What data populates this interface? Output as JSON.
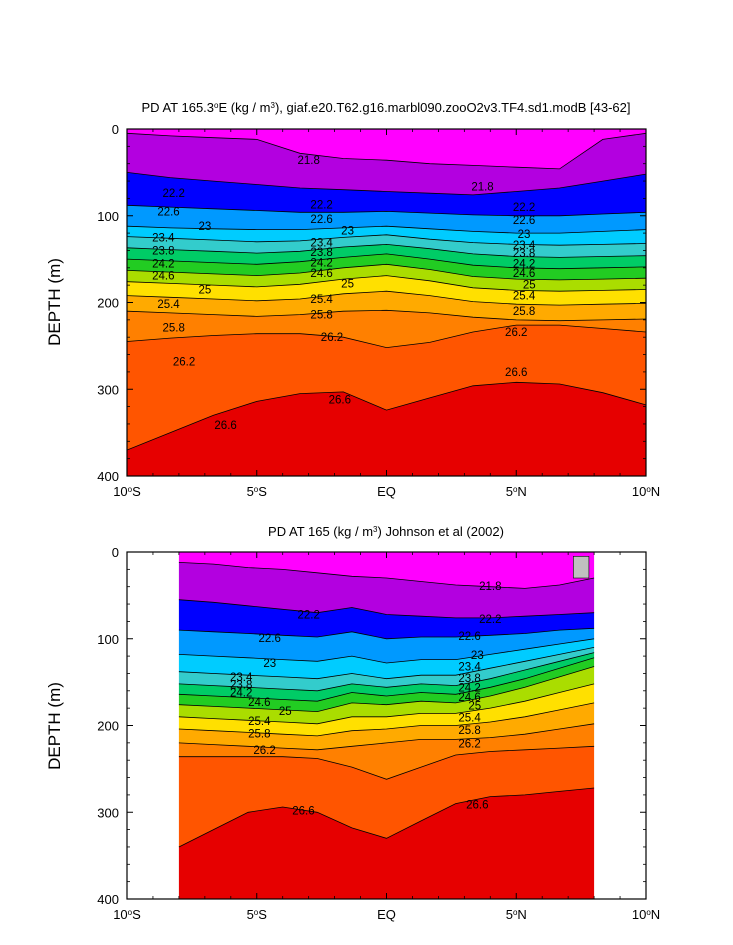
{
  "chart_data": [
    {
      "type": "contour",
      "title": "PD AT 165.3°E (kg / m³), giaf.e20.T62.g16.marbl090.zooO2v3.TF4.sd1.modB [43-62]",
      "title_parts": {
        "pre": "PD AT 165.3",
        "deg": "o",
        "mid": "E (kg / m",
        "sup": "3",
        "post": "), giaf.e20.T62.g16.marbl090.zooO2v3.TF4.sd1.modB [43-62]"
      },
      "ylabel": "DEPTH (m)",
      "xlabel": "",
      "xlim": [
        -10,
        10
      ],
      "ylim": [
        0,
        400
      ],
      "y_inverted": true,
      "data_xrange": [
        -10,
        10
      ],
      "x_ticks": [
        {
          "value": -10,
          "num": "10",
          "deg": "o",
          "hem": "S"
        },
        {
          "value": -5,
          "num": "5",
          "deg": "o",
          "hem": "S"
        },
        {
          "value": 0,
          "num": "EQ",
          "deg": "",
          "hem": ""
        },
        {
          "value": 5,
          "num": "5",
          "deg": "o",
          "hem": "N"
        },
        {
          "value": 10,
          "num": "10",
          "deg": "o",
          "hem": "N"
        }
      ],
      "y_ticks": [
        {
          "value": 0,
          "label": "0"
        },
        {
          "value": 100,
          "label": "100"
        },
        {
          "value": 200,
          "label": "200"
        },
        {
          "value": 300,
          "label": "300"
        },
        {
          "value": 400,
          "label": "400"
        }
      ],
      "isopycnal_depths": [
        {
          "sigma": 21.8,
          "depth": [
            5,
            8,
            10,
            12,
            28,
            34,
            36,
            40,
            42,
            44,
            46,
            12,
            5
          ]
        },
        {
          "sigma": 22.2,
          "depth": [
            50,
            56,
            60,
            64,
            68,
            70,
            72,
            74,
            76,
            72,
            68,
            60,
            52
          ]
        },
        {
          "sigma": 22.6,
          "depth": [
            88,
            90,
            92,
            94,
            96,
            96,
            95,
            97,
            99,
            100,
            100,
            98,
            96
          ]
        },
        {
          "sigma": 23.0,
          "depth": [
            112,
            114,
            115,
            116,
            116,
            114,
            112,
            115,
            118,
            120,
            120,
            118,
            116
          ]
        },
        {
          "sigma": 23.4,
          "depth": [
            124,
            126,
            128,
            130,
            129,
            125,
            122,
            127,
            131,
            133,
            134,
            133,
            132
          ]
        },
        {
          "sigma": 23.8,
          "depth": [
            137,
            139,
            141,
            143,
            141,
            136,
            133,
            138,
            144,
            147,
            148,
            147,
            146
          ]
        },
        {
          "sigma": 24.2,
          "depth": [
            150,
            152,
            154,
            156,
            153,
            148,
            144,
            150,
            157,
            160,
            161,
            160,
            159
          ]
        },
        {
          "sigma": 24.6,
          "depth": [
            163,
            165,
            167,
            169,
            166,
            160,
            156,
            162,
            170,
            173,
            174,
            173,
            172
          ]
        },
        {
          "sigma": 25.0,
          "depth": [
            176,
            178,
            180,
            182,
            179,
            173,
            169,
            175,
            183,
            186,
            187,
            186,
            185
          ]
        },
        {
          "sigma": 25.4,
          "depth": [
            192,
            194,
            196,
            198,
            196,
            190,
            187,
            192,
            199,
            202,
            203,
            202,
            201
          ]
        },
        {
          "sigma": 25.8,
          "depth": [
            210,
            212,
            214,
            216,
            214,
            210,
            209,
            212,
            217,
            220,
            221,
            220,
            219
          ]
        },
        {
          "sigma": 26.2,
          "depth": [
            245,
            241,
            238,
            236,
            236,
            240,
            252,
            246,
            234,
            226,
            226,
            230,
            234
          ]
        },
        {
          "sigma": 26.6,
          "depth": [
            370,
            350,
            330,
            314,
            305,
            303,
            324,
            310,
            296,
            292,
            294,
            304,
            318
          ]
        }
      ],
      "contour_labels": [
        {
          "text": "21.8",
          "x": -3.0,
          "y": 36
        },
        {
          "text": "21.8",
          "x": 3.7,
          "y": 66
        },
        {
          "text": "22.2",
          "x": -8.2,
          "y": 74
        },
        {
          "text": "22.2",
          "x": -2.5,
          "y": 87
        },
        {
          "text": "22.2",
          "x": 5.3,
          "y": 90
        },
        {
          "text": "22.6",
          "x": -8.4,
          "y": 95
        },
        {
          "text": "22.6",
          "x": -2.5,
          "y": 104
        },
        {
          "text": "22.6",
          "x": 5.3,
          "y": 105
        },
        {
          "text": "23",
          "x": -7.0,
          "y": 112
        },
        {
          "text": "23",
          "x": -1.5,
          "y": 117
        },
        {
          "text": "23",
          "x": 5.3,
          "y": 121
        },
        {
          "text": "23.4",
          "x": -8.6,
          "y": 125
        },
        {
          "text": "23.4",
          "x": -2.5,
          "y": 131
        },
        {
          "text": "23.4",
          "x": 5.3,
          "y": 134
        },
        {
          "text": "23.8",
          "x": -8.6,
          "y": 140
        },
        {
          "text": "23.8",
          "x": -2.5,
          "y": 142
        },
        {
          "text": "23.8",
          "x": 5.3,
          "y": 143
        },
        {
          "text": "24.2",
          "x": -8.6,
          "y": 155
        },
        {
          "text": "24.2",
          "x": -2.5,
          "y": 154
        },
        {
          "text": "24.2",
          "x": 5.3,
          "y": 155
        },
        {
          "text": "24.6",
          "x": -8.6,
          "y": 169
        },
        {
          "text": "24.6",
          "x": -2.5,
          "y": 166
        },
        {
          "text": "24.6",
          "x": 5.3,
          "y": 166
        },
        {
          "text": "25",
          "x": -1.5,
          "y": 178
        },
        {
          "text": "25",
          "x": 5.5,
          "y": 179
        },
        {
          "text": "25",
          "x": -7.0,
          "y": 185
        },
        {
          "text": "25.4",
          "x": -8.4,
          "y": 202
        },
        {
          "text": "25.4",
          "x": -2.5,
          "y": 196
        },
        {
          "text": "25.4",
          "x": 5.3,
          "y": 192
        },
        {
          "text": "25.8",
          "x": -8.2,
          "y": 229
        },
        {
          "text": "25.8",
          "x": -2.5,
          "y": 214
        },
        {
          "text": "25.8",
          "x": 5.3,
          "y": 210
        },
        {
          "text": "26.2",
          "x": -7.8,
          "y": 268
        },
        {
          "text": "26.2",
          "x": -2.1,
          "y": 240
        },
        {
          "text": "26.2",
          "x": 5.0,
          "y": 234
        },
        {
          "text": "26.6",
          "x": -6.2,
          "y": 341
        },
        {
          "text": "26.6",
          "x": -1.8,
          "y": 312
        },
        {
          "text": "26.6",
          "x": 5.0,
          "y": 280
        }
      ]
    },
    {
      "type": "contour",
      "title": "PD AT 165 (kg / m³) Johnson et al (2002)",
      "title_parts": {
        "pre": "PD AT 165 (kg / m",
        "sup": "3",
        "post": ") Johnson et al (2002)"
      },
      "ylabel": "DEPTH (m)",
      "xlabel": "",
      "xlim": [
        -10,
        10
      ],
      "ylim": [
        0,
        400
      ],
      "y_inverted": true,
      "data_xrange": [
        -8,
        8
      ],
      "missing_patch": {
        "x": [
          7.2,
          7.8
        ],
        "depth": [
          5,
          30
        ],
        "color": "#c0c0c0"
      },
      "x_ticks": [
        {
          "value": -10,
          "num": "10",
          "deg": "o",
          "hem": "S"
        },
        {
          "value": -5,
          "num": "5",
          "deg": "o",
          "hem": "S"
        },
        {
          "value": 0,
          "num": "EQ",
          "deg": "",
          "hem": ""
        },
        {
          "value": 5,
          "num": "5",
          "deg": "o",
          "hem": "N"
        },
        {
          "value": 10,
          "num": "10",
          "deg": "o",
          "hem": "N"
        }
      ],
      "y_ticks": [
        {
          "value": 0,
          "label": "0"
        },
        {
          "value": 100,
          "label": "100"
        },
        {
          "value": 200,
          "label": "200"
        },
        {
          "value": 300,
          "label": "300"
        },
        {
          "value": 400,
          "label": "400"
        }
      ],
      "isopycnal_depths": [
        {
          "sigma": 21.8,
          "depth": [
            12,
            14,
            18,
            20,
            24,
            28,
            30,
            34,
            38,
            40,
            42,
            38,
            30
          ]
        },
        {
          "sigma": 22.2,
          "depth": [
            55,
            58,
            62,
            66,
            70,
            64,
            72,
            74,
            76,
            76,
            74,
            72,
            70
          ]
        },
        {
          "sigma": 22.6,
          "depth": [
            90,
            92,
            94,
            96,
            98,
            92,
            100,
            98,
            98,
            96,
            94,
            90,
            88
          ]
        },
        {
          "sigma": 23.0,
          "depth": [
            118,
            120,
            122,
            124,
            126,
            120,
            128,
            124,
            124,
            118,
            112,
            106,
            100
          ]
        },
        {
          "sigma": 23.4,
          "depth": [
            138,
            140,
            142,
            144,
            146,
            140,
            146,
            142,
            142,
            134,
            126,
            118,
            110
          ]
        },
        {
          "sigma": 23.8,
          "depth": [
            152,
            154,
            156,
            158,
            160,
            152,
            156,
            152,
            154,
            146,
            136,
            126,
            116
          ]
        },
        {
          "sigma": 24.2,
          "depth": [
            164,
            166,
            168,
            170,
            172,
            162,
            166,
            162,
            164,
            156,
            146,
            134,
            122
          ]
        },
        {
          "sigma": 24.6,
          "depth": [
            176,
            178,
            180,
            182,
            184,
            174,
            176,
            172,
            174,
            166,
            156,
            144,
            132
          ]
        },
        {
          "sigma": 25.0,
          "depth": [
            190,
            192,
            194,
            196,
            198,
            190,
            190,
            186,
            186,
            180,
            172,
            162,
            152
          ]
        },
        {
          "sigma": 25.4,
          "depth": [
            204,
            206,
            208,
            210,
            212,
            206,
            204,
            200,
            200,
            196,
            190,
            182,
            174
          ]
        },
        {
          "sigma": 25.8,
          "depth": [
            220,
            222,
            224,
            226,
            228,
            224,
            220,
            216,
            216,
            214,
            210,
            204,
            198
          ]
        },
        {
          "sigma": 26.2,
          "depth": [
            236,
            236,
            236,
            236,
            238,
            248,
            262,
            248,
            234,
            230,
            228,
            226,
            224
          ]
        },
        {
          "sigma": 26.6,
          "depth": [
            340,
            320,
            300,
            294,
            300,
            318,
            330,
            310,
            290,
            282,
            280,
            276,
            272
          ]
        }
      ],
      "contour_labels": [
        {
          "text": "21.8",
          "x": 4.0,
          "y": 39
        },
        {
          "text": "22.2",
          "x": -3.0,
          "y": 72
        },
        {
          "text": "22.2",
          "x": 4.0,
          "y": 77
        },
        {
          "text": "22.6",
          "x": -4.5,
          "y": 99
        },
        {
          "text": "22.6",
          "x": 3.2,
          "y": 97
        },
        {
          "text": "23",
          "x": -4.5,
          "y": 128
        },
        {
          "text": "23",
          "x": 3.5,
          "y": 119
        },
        {
          "text": "23.4",
          "x": -5.6,
          "y": 144
        },
        {
          "text": "23.4",
          "x": 3.2,
          "y": 132
        },
        {
          "text": "23.8",
          "x": -5.6,
          "y": 153
        },
        {
          "text": "23.8",
          "x": 3.2,
          "y": 145
        },
        {
          "text": "24.2",
          "x": -5.6,
          "y": 162
        },
        {
          "text": "24.2",
          "x": 3.2,
          "y": 156
        },
        {
          "text": "24.6",
          "x": -4.9,
          "y": 173
        },
        {
          "text": "24.6",
          "x": 3.2,
          "y": 167
        },
        {
          "text": "25",
          "x": -3.9,
          "y": 183
        },
        {
          "text": "25",
          "x": 3.4,
          "y": 177
        },
        {
          "text": "25.4",
          "x": -4.9,
          "y": 195
        },
        {
          "text": "25.4",
          "x": 3.2,
          "y": 191
        },
        {
          "text": "25.8",
          "x": -4.9,
          "y": 209
        },
        {
          "text": "25.8",
          "x": 3.2,
          "y": 205
        },
        {
          "text": "26.2",
          "x": -4.7,
          "y": 228
        },
        {
          "text": "26.2",
          "x": 3.2,
          "y": 221
        },
        {
          "text": "26.6",
          "x": -3.2,
          "y": 298
        },
        {
          "text": "26.6",
          "x": 3.5,
          "y": 291
        }
      ]
    }
  ]
}
